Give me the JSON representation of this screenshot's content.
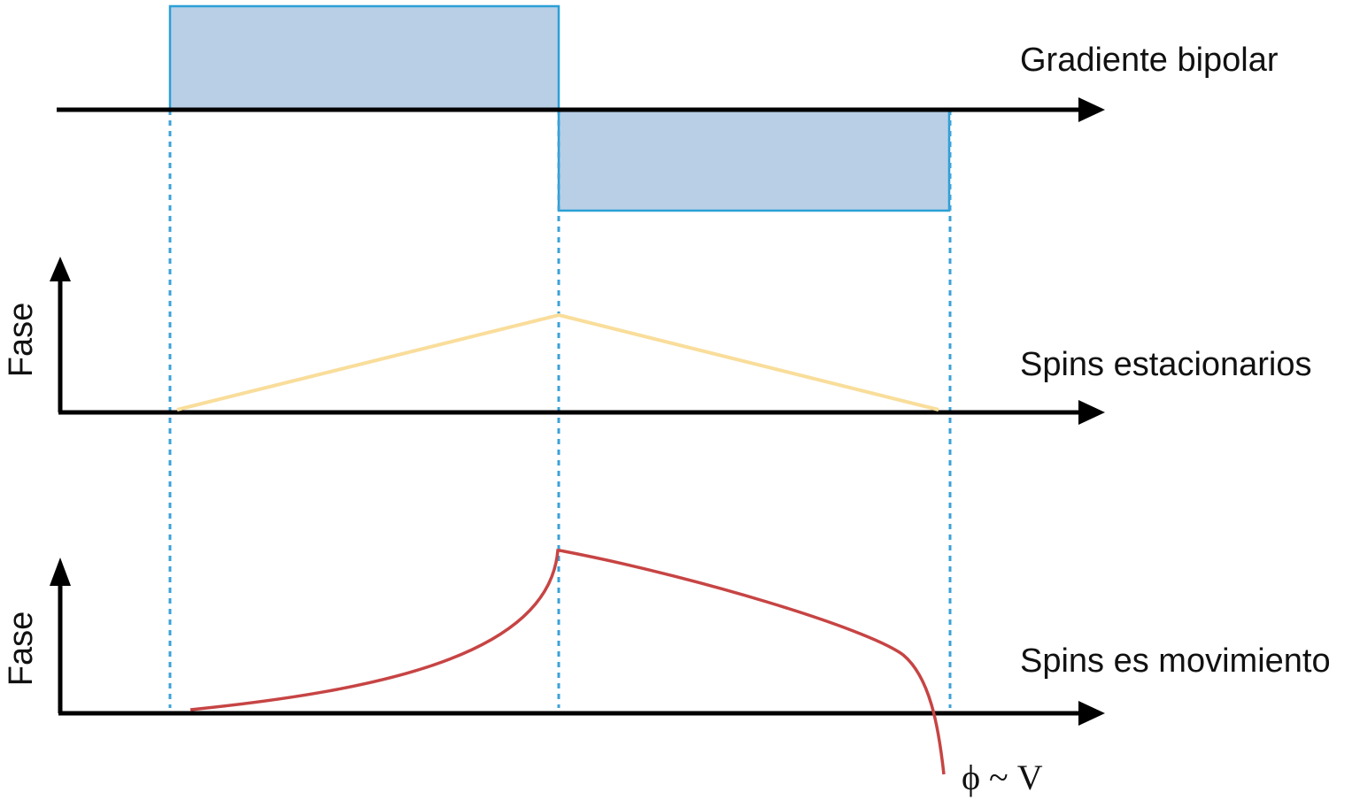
{
  "panels": {
    "gradient": {
      "label": "Gradiente bipolar"
    },
    "stationary": {
      "label": "Spins estacionarios",
      "ylabel": "Fase"
    },
    "moving": {
      "label": "Spins es movimiento",
      "ylabel": "Fase",
      "formula": "ϕ ~ V"
    }
  },
  "colors": {
    "axis": "#000000",
    "gradient_fill": "#b9cfe6",
    "gradient_stroke": "#2b9fd6",
    "guide": "#3aa2d8",
    "stationary_line": "#f9dd9a",
    "moving_curve": "#c74444"
  }
}
